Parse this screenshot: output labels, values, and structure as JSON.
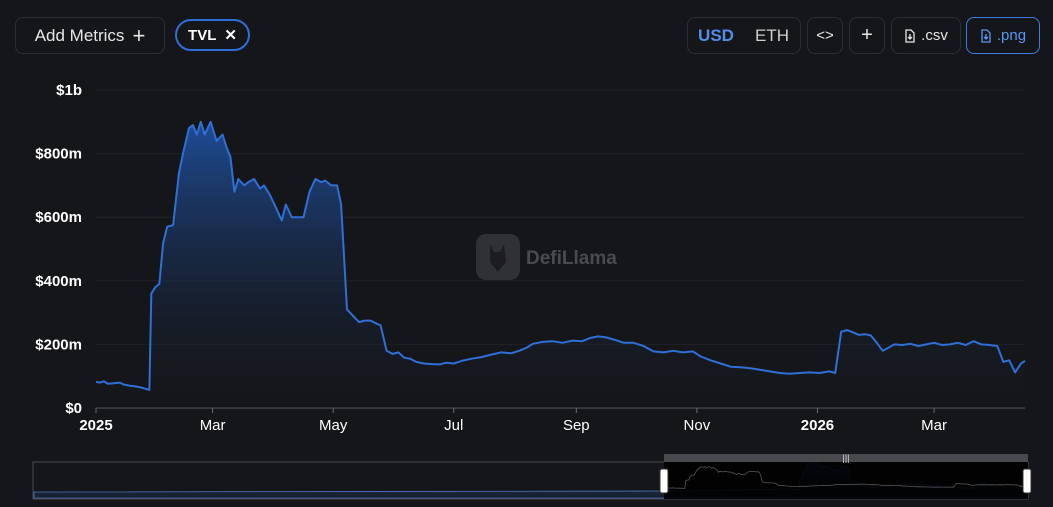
{
  "toolbar": {
    "add_metrics_label": "Add Metrics",
    "metric_chip": "TVL",
    "currency_options": [
      "USD",
      "ETH"
    ],
    "embed_icon": "code-icon",
    "add_icon": "plus-icon",
    "csv_label": ".csv",
    "png_label": ".png"
  },
  "watermark": {
    "text": "DefiLlama"
  },
  "colors": {
    "line": "#2f6fd6",
    "accent": "#4f8fe8",
    "background": "#151619"
  },
  "chart_data": {
    "type": "area",
    "title": "",
    "xlabel": "",
    "ylabel": "",
    "y_ticks": [
      {
        "value": 0,
        "label": "$0"
      },
      {
        "value": 200,
        "label": "$200m"
      },
      {
        "value": 400,
        "label": "$400m"
      },
      {
        "value": 600,
        "label": "$600m"
      },
      {
        "value": 800,
        "label": "$800m"
      },
      {
        "value": 1000,
        "label": "$1b"
      }
    ],
    "x_ticks": [
      {
        "date": "2025-01-01",
        "label": "2025",
        "bold": true
      },
      {
        "date": "2025-03-01",
        "label": "Mar"
      },
      {
        "date": "2025-05-01",
        "label": "May"
      },
      {
        "date": "2025-07-01",
        "label": "Jul"
      },
      {
        "date": "2025-09-01",
        "label": "Sep"
      },
      {
        "date": "2025-11-01",
        "label": "Nov"
      },
      {
        "date": "2026-01-01",
        "label": "2026",
        "bold": true
      },
      {
        "date": "2026-03-01",
        "label": "Mar"
      }
    ],
    "x_range": [
      "2025-01-01",
      "2026-04-16"
    ],
    "ylim": [
      0,
      1000
    ],
    "y_unit": "USD millions",
    "grid": true,
    "legend": "none",
    "series": [
      {
        "values": [
          [
            "2025-01-01",
            82
          ],
          [
            "2025-01-03",
            80
          ],
          [
            "2025-01-05",
            84
          ],
          [
            "2025-01-07",
            76
          ],
          [
            "2025-01-10",
            78
          ],
          [
            "2025-01-13",
            80
          ],
          [
            "2025-01-15",
            74
          ],
          [
            "2025-01-18",
            70
          ],
          [
            "2025-01-21",
            68
          ],
          [
            "2025-01-24",
            64
          ],
          [
            "2025-01-28",
            57
          ],
          [
            "2025-01-29",
            360
          ],
          [
            "2025-01-31",
            380
          ],
          [
            "2025-02-02",
            390
          ],
          [
            "2025-02-04",
            520
          ],
          [
            "2025-02-06",
            570
          ],
          [
            "2025-02-09",
            575
          ],
          [
            "2025-02-12",
            740
          ],
          [
            "2025-02-14",
            800
          ],
          [
            "2025-02-17",
            880
          ],
          [
            "2025-02-19",
            890
          ],
          [
            "2025-02-21",
            860
          ],
          [
            "2025-02-23",
            900
          ],
          [
            "2025-02-25",
            860
          ],
          [
            "2025-02-28",
            900
          ],
          [
            "2025-03-03",
            840
          ],
          [
            "2025-03-06",
            860
          ],
          [
            "2025-03-08",
            820
          ],
          [
            "2025-03-10",
            790
          ],
          [
            "2025-03-12",
            680
          ],
          [
            "2025-03-14",
            720
          ],
          [
            "2025-03-17",
            700
          ],
          [
            "2025-03-19",
            710
          ],
          [
            "2025-03-22",
            720
          ],
          [
            "2025-03-25",
            690
          ],
          [
            "2025-03-27",
            700
          ],
          [
            "2025-03-30",
            670
          ],
          [
            "2025-04-02",
            630
          ],
          [
            "2025-04-05",
            590
          ],
          [
            "2025-04-07",
            640
          ],
          [
            "2025-04-10",
            600
          ],
          [
            "2025-04-13",
            600
          ],
          [
            "2025-04-16",
            600
          ],
          [
            "2025-04-19",
            680
          ],
          [
            "2025-04-22",
            720
          ],
          [
            "2025-04-25",
            710
          ],
          [
            "2025-04-27",
            715
          ],
          [
            "2025-04-30",
            700
          ],
          [
            "2025-05-03",
            700
          ],
          [
            "2025-05-05",
            640
          ],
          [
            "2025-05-08",
            310
          ],
          [
            "2025-05-11",
            290
          ],
          [
            "2025-05-14",
            270
          ],
          [
            "2025-05-17",
            275
          ],
          [
            "2025-05-20",
            275
          ],
          [
            "2025-05-23",
            265
          ],
          [
            "2025-05-25",
            260
          ],
          [
            "2025-05-28",
            180
          ],
          [
            "2025-05-31",
            170
          ],
          [
            "2025-06-03",
            175
          ],
          [
            "2025-06-06",
            158
          ],
          [
            "2025-06-09",
            155
          ],
          [
            "2025-06-12",
            145
          ],
          [
            "2025-06-16",
            140
          ],
          [
            "2025-06-20",
            138
          ],
          [
            "2025-06-24",
            137
          ],
          [
            "2025-06-27",
            142
          ],
          [
            "2025-07-01",
            140
          ],
          [
            "2025-07-05",
            148
          ],
          [
            "2025-07-10",
            155
          ],
          [
            "2025-07-15",
            160
          ],
          [
            "2025-07-20",
            168
          ],
          [
            "2025-07-25",
            175
          ],
          [
            "2025-07-30",
            172
          ],
          [
            "2025-08-03",
            180
          ],
          [
            "2025-08-07",
            190
          ],
          [
            "2025-08-10",
            202
          ],
          [
            "2025-08-15",
            208
          ],
          [
            "2025-08-20",
            210
          ],
          [
            "2025-08-25",
            205
          ],
          [
            "2025-08-30",
            212
          ],
          [
            "2025-09-04",
            210
          ],
          [
            "2025-09-08",
            220
          ],
          [
            "2025-09-12",
            225
          ],
          [
            "2025-09-16",
            222
          ],
          [
            "2025-09-20",
            215
          ],
          [
            "2025-09-25",
            205
          ],
          [
            "2025-09-30",
            205
          ],
          [
            "2025-10-05",
            195
          ],
          [
            "2025-10-10",
            178
          ],
          [
            "2025-10-15",
            175
          ],
          [
            "2025-10-20",
            180
          ],
          [
            "2025-10-25",
            175
          ],
          [
            "2025-10-30",
            178
          ],
          [
            "2025-11-03",
            162
          ],
          [
            "2025-11-08",
            150
          ],
          [
            "2025-11-13",
            140
          ],
          [
            "2025-11-18",
            130
          ],
          [
            "2025-11-23",
            128
          ],
          [
            "2025-11-28",
            125
          ],
          [
            "2025-12-03",
            120
          ],
          [
            "2025-12-08",
            115
          ],
          [
            "2025-12-13",
            110
          ],
          [
            "2025-12-18",
            108
          ],
          [
            "2025-12-23",
            110
          ],
          [
            "2025-12-28",
            112
          ],
          [
            "2026-01-02",
            110
          ],
          [
            "2026-01-07",
            115
          ],
          [
            "2026-01-10",
            110
          ],
          [
            "2026-01-13",
            240
          ],
          [
            "2026-01-16",
            245
          ],
          [
            "2026-01-19",
            238
          ],
          [
            "2026-01-22",
            230
          ],
          [
            "2026-01-25",
            232
          ],
          [
            "2026-01-28",
            228
          ],
          [
            "2026-01-31",
            205
          ],
          [
            "2026-02-03",
            180
          ],
          [
            "2026-02-06",
            190
          ],
          [
            "2026-02-09",
            200
          ],
          [
            "2026-02-13",
            198
          ],
          [
            "2026-02-17",
            202
          ],
          [
            "2026-02-21",
            195
          ],
          [
            "2026-02-25",
            200
          ],
          [
            "2026-03-01",
            205
          ],
          [
            "2026-03-05",
            198
          ],
          [
            "2026-03-09",
            200
          ],
          [
            "2026-03-13",
            205
          ],
          [
            "2026-03-17",
            198
          ],
          [
            "2026-03-21",
            210
          ],
          [
            "2026-03-25",
            200
          ],
          [
            "2026-03-29",
            198
          ],
          [
            "2026-04-02",
            195
          ],
          [
            "2026-04-05",
            145
          ],
          [
            "2026-04-08",
            150
          ],
          [
            "2026-04-11",
            112
          ],
          [
            "2026-04-14",
            140
          ],
          [
            "2026-04-16",
            148
          ]
        ]
      }
    ]
  }
}
